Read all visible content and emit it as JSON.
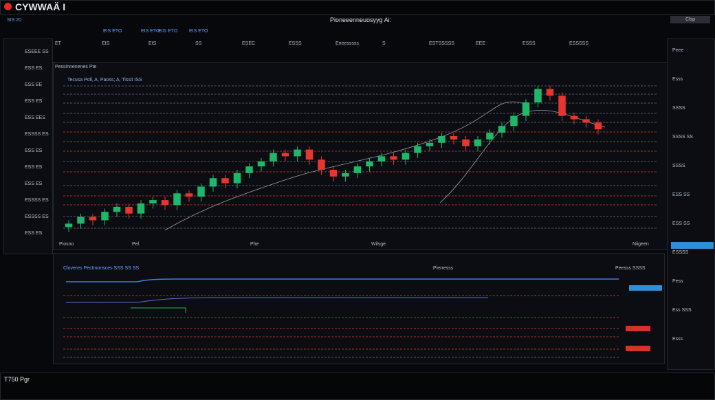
{
  "header": {
    "title": "CYWWAÄ I",
    "center": "Pioneeenneuosyyg Ai:",
    "button": "Clsp"
  },
  "tabs": [
    "SIS 20",
    "EIS ETO",
    "EIS ETO",
    "EIG ETO",
    "EIS ETO"
  ],
  "toolbar": [
    "ET",
    "EIS",
    "EIS",
    "SS",
    "ESEC",
    "ESSS",
    "Eneesssss",
    "S",
    "ESTSSSSS",
    "EEE",
    "ESSS",
    "ESSSSS"
  ],
  "sidebar": [
    "ESEEE SS",
    "ESS ES",
    "ESS EE",
    "ESS ES",
    "ESS EES",
    "ESSSS ES",
    "ESS ES",
    "ESS ES",
    "ESS ES",
    "ESSSS ES",
    "ESSSS ES",
    "ESS ES"
  ],
  "main_chart": {
    "type": "candlestick",
    "legend": "Tecusa Poll, A, Paoss; A, Tissit ISS",
    "header_note": "Pessinnenenes Pte",
    "x_labels": [
      "Piosno",
      "Pel",
      "Phe",
      "Wilsge",
      "Niigeen"
    ],
    "ylim": [
      0,
      100
    ],
    "open": [
      6,
      8,
      12,
      10,
      15,
      18,
      14,
      20,
      22,
      19,
      26,
      24,
      30,
      35,
      32,
      38,
      42,
      45,
      50,
      48,
      52,
      46,
      40,
      36,
      38,
      42,
      45,
      48,
      46,
      50,
      54,
      56,
      60,
      58,
      54,
      58,
      62,
      66,
      72,
      80,
      88,
      84,
      72,
      70,
      68
    ],
    "close": [
      8,
      12,
      10,
      15,
      18,
      14,
      20,
      22,
      19,
      26,
      24,
      30,
      35,
      32,
      38,
      42,
      45,
      50,
      48,
      52,
      46,
      40,
      36,
      38,
      42,
      45,
      48,
      46,
      50,
      54,
      56,
      60,
      58,
      54,
      58,
      62,
      66,
      72,
      80,
      88,
      84,
      72,
      70,
      68,
      64
    ],
    "high": [
      10,
      14,
      14,
      17,
      20,
      20,
      22,
      24,
      24,
      28,
      28,
      32,
      37,
      37,
      40,
      44,
      47,
      52,
      52,
      54,
      54,
      48,
      42,
      40,
      44,
      47,
      50,
      50,
      52,
      56,
      58,
      62,
      62,
      60,
      60,
      64,
      68,
      74,
      82,
      90,
      90,
      86,
      74,
      72,
      70
    ],
    "low": [
      3,
      5,
      7,
      7,
      12,
      11,
      11,
      17,
      16,
      16,
      21,
      21,
      27,
      29,
      29,
      35,
      39,
      42,
      45,
      45,
      43,
      37,
      33,
      33,
      35,
      39,
      42,
      43,
      43,
      47,
      51,
      53,
      55,
      51,
      51,
      55,
      59,
      63,
      69,
      77,
      81,
      69,
      67,
      65,
      61
    ],
    "up_color": "#1fb86a",
    "down_color": "#e8362f"
  },
  "lower_panel": {
    "legend": "Cloveres Pectmonsces SSS SS SS",
    "label": "Pierresss",
    "right_label": "Peesss SSSS"
  },
  "right_panel": [
    "Peee",
    "Esss",
    "SSSS",
    "SSSS SS",
    "SSSS",
    "ESS SS",
    "ESS SS",
    "ESSSS",
    "Pess",
    "Ess SSS",
    "Esss"
  ],
  "footer": {
    "text": "T750 Pgr"
  }
}
